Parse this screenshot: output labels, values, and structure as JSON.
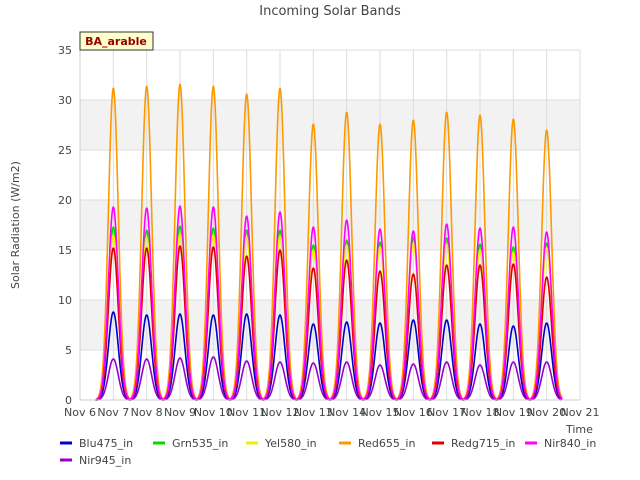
{
  "chart_data": {
    "type": "line",
    "title": "Incoming Solar Bands",
    "ylabel": "Solar Radiation (W/m2)",
    "xlabel": "Time",
    "site_badge": "BA_arable",
    "ylim": [
      0,
      35
    ],
    "yticks": [
      0,
      5,
      10,
      15,
      20,
      25,
      30,
      35
    ],
    "xlim": [
      6,
      21
    ],
    "xticks": [
      {
        "v": 6,
        "label": "Nov 6"
      },
      {
        "v": 7,
        "label": "Nov 7"
      },
      {
        "v": 8,
        "label": "Nov 8"
      },
      {
        "v": 9,
        "label": "Nov 9"
      },
      {
        "v": 10,
        "label": "Nov 10"
      },
      {
        "v": 11,
        "label": "Nov 11"
      },
      {
        "v": 12,
        "label": "Nov 12"
      },
      {
        "v": 13,
        "label": "Nov 13"
      },
      {
        "v": 14,
        "label": "Nov 14"
      },
      {
        "v": 15,
        "label": "Nov 15"
      },
      {
        "v": 16,
        "label": "Nov 16"
      },
      {
        "v": 17,
        "label": "Nov 17"
      },
      {
        "v": 18,
        "label": "Nov 18"
      },
      {
        "v": 19,
        "label": "Nov 19"
      },
      {
        "v": 20,
        "label": "Nov 20"
      },
      {
        "v": 21,
        "label": "Nov 21"
      }
    ],
    "grid": true,
    "legend_position": "bottom",
    "day_peak_times": [
      7.0,
      8.0,
      9.0,
      10.0,
      11.0,
      12.0,
      13.0,
      14.0,
      15.0,
      16.0,
      17.0,
      18.0,
      19.0,
      20.0
    ],
    "series": [
      {
        "name": "Blu475_in",
        "color": "#0000cc",
        "daily_peaks": [
          8.8,
          8.5,
          8.6,
          8.5,
          8.6,
          8.5,
          7.6,
          7.8,
          7.7,
          8.0,
          8.0,
          7.6,
          7.4,
          7.7
        ]
      },
      {
        "name": "Grn535_in",
        "color": "#00dd00",
        "daily_peaks": [
          17.3,
          17.0,
          17.4,
          17.2,
          17.0,
          17.0,
          15.5,
          16.0,
          15.8,
          16.3,
          16.2,
          15.6,
          15.3,
          15.7
        ]
      },
      {
        "name": "Yel580_in",
        "color": "#eeee00",
        "daily_peaks": [
          16.5,
          16.3,
          16.6,
          16.5,
          16.3,
          16.4,
          15.0,
          15.5,
          15.3,
          15.7,
          15.6,
          15.0,
          14.8,
          15.2
        ]
      },
      {
        "name": "Red655_in",
        "color": "#ff9900",
        "daily_peaks": [
          31.2,
          31.4,
          31.6,
          31.4,
          30.6,
          31.2,
          27.6,
          28.8,
          27.6,
          28.0,
          28.8,
          28.5,
          28.1,
          27.0
        ]
      },
      {
        "name": "Redg715_in",
        "color": "#dd0000",
        "daily_peaks": [
          15.2,
          15.2,
          15.4,
          15.3,
          14.4,
          15.0,
          13.2,
          14.0,
          12.9,
          12.6,
          13.5,
          13.5,
          13.6,
          12.3
        ]
      },
      {
        "name": "Nir840_in",
        "color": "#ff00ff",
        "daily_peaks": [
          19.3,
          19.2,
          19.4,
          19.3,
          18.4,
          18.8,
          17.3,
          18.0,
          17.1,
          16.9,
          17.6,
          17.2,
          17.3,
          16.8
        ]
      },
      {
        "name": "Nir945_in",
        "color": "#9900cc",
        "daily_peaks": [
          4.1,
          4.1,
          4.2,
          4.3,
          3.9,
          3.8,
          3.7,
          3.8,
          3.5,
          3.6,
          3.8,
          3.5,
          3.8,
          3.8
        ]
      }
    ]
  }
}
